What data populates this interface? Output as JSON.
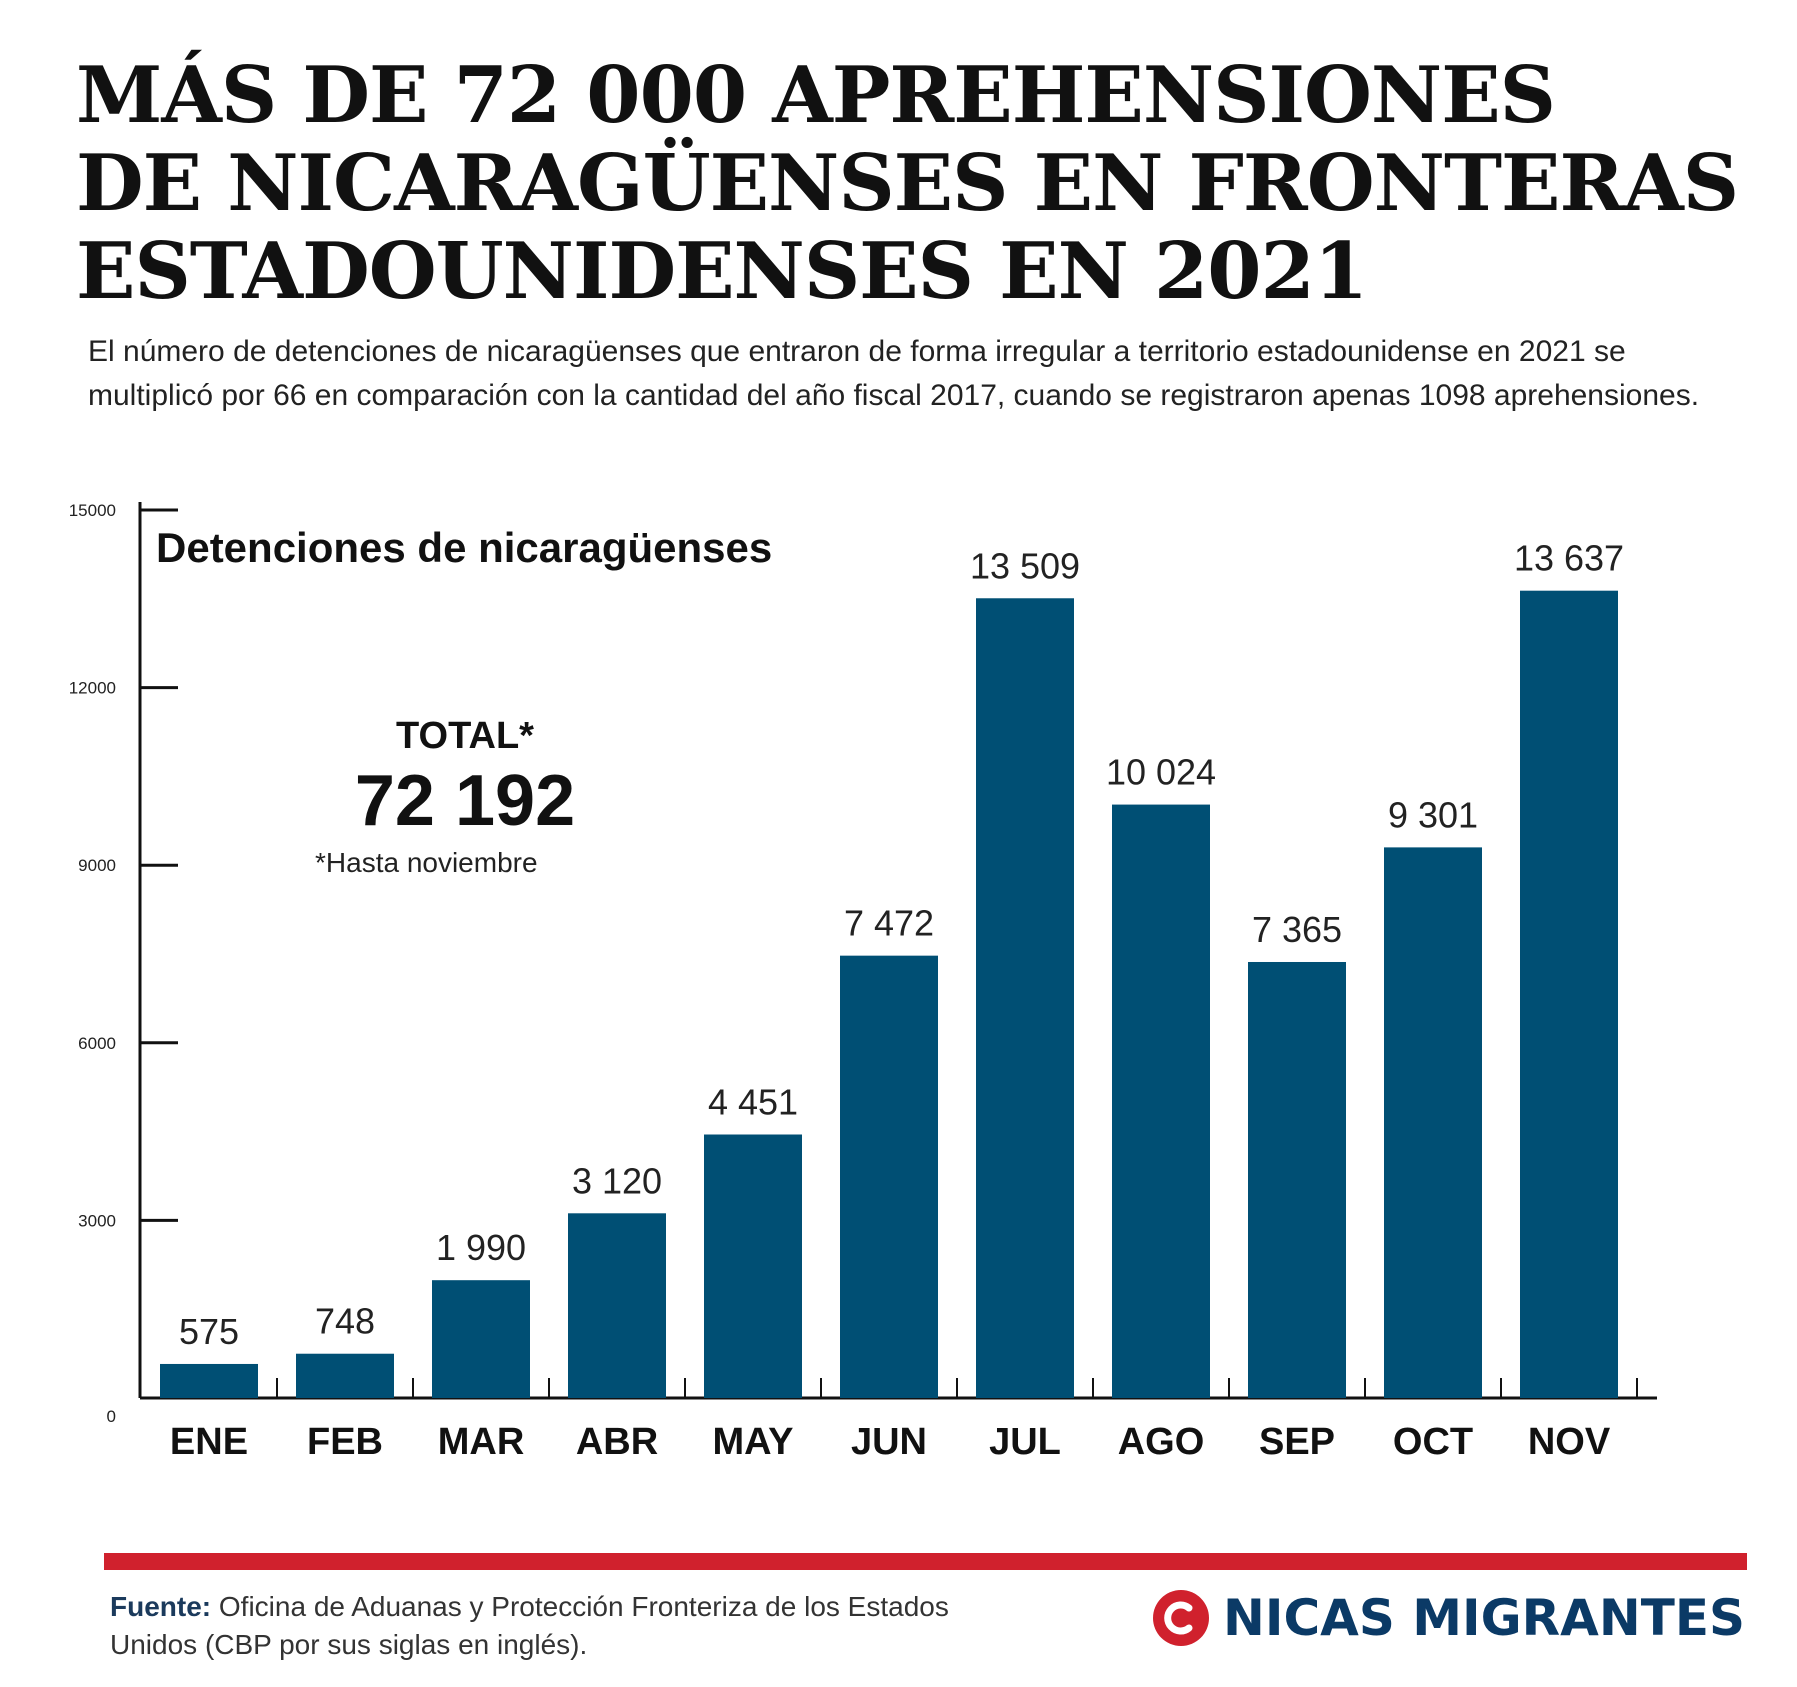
{
  "headline": [
    "MÁS DE 72 000 APREHENSIONES",
    "DE NICARAGÜENSES EN FRONTERAS",
    "ESTADOUNIDENSES EN 2021"
  ],
  "lede": "El número de detenciones de nicaragüenses que entraron de forma irregular a territorio estadounidense en 2021 se multiplicó por 66 en comparación con la cantidad del año fiscal 2017, cuando se registraron apenas 1098 aprehensiones.",
  "total": {
    "label": "TOTAL*",
    "value": "72 192",
    "note": "*Hasta noviembre"
  },
  "chart_data": {
    "type": "bar",
    "title": "Detenciones de nicaragüenses",
    "categories": [
      "ENE",
      "FEB",
      "MAR",
      "ABR",
      "MAY",
      "JUN",
      "JUL",
      "AGO",
      "SEP",
      "OCT",
      "NOV"
    ],
    "values": [
      575,
      748,
      1990,
      3120,
      4451,
      7472,
      13509,
      10024,
      7365,
      9301,
      13637
    ],
    "value_labels": [
      "575",
      "748",
      "1 990",
      "3 120",
      "4 451",
      "7 472",
      "13 509",
      "10 024",
      "7 365",
      "9 301",
      "13 637"
    ],
    "yticks": [
      0,
      3000,
      6000,
      9000,
      12000,
      15000
    ],
    "ylim": [
      0,
      15000
    ],
    "xlabel": "",
    "ylabel": "",
    "grid": false,
    "bar_color": "#004f74"
  },
  "footer": {
    "source_label": "Fuente:",
    "source_text": " Oficina de Aduanas y Protección Fronteriza de los Estados Unidos (CBP por sus siglas en inglés).",
    "brand": "NICAS MIGRANTES",
    "brand_color": "#0b3a66",
    "accent_color": "#d0212d"
  }
}
